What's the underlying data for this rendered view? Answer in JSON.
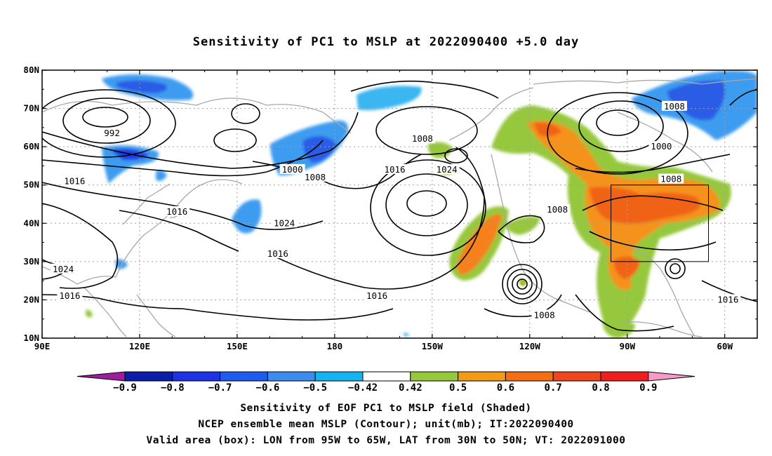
{
  "chart_data": {
    "type": "heatmap",
    "title": "Sensitivity of PC1 to MSLP at 2022090400 +5.0 day",
    "x_ticks": [
      "90E",
      "120E",
      "150E",
      "180",
      "150W",
      "120W",
      "90W",
      "60W"
    ],
    "y_ticks": [
      "10N",
      "20N",
      "30N",
      "40N",
      "50N",
      "60N",
      "70N",
      "80N"
    ],
    "lon_range_deg_east": [
      90,
      310
    ],
    "lat_range": [
      10,
      80
    ],
    "grid": "dotted",
    "colorbar": {
      "labels": [
        "-0.9",
        "-0.8",
        "-0.7",
        "-0.6",
        "-0.5",
        "-0.42",
        "0.42",
        "0.5",
        "0.6",
        "0.7",
        "0.8",
        "0.9"
      ],
      "colors": [
        "#9c1e9c",
        "#0a1ea8",
        "#1e32e6",
        "#1e5cf0",
        "#3c8cf0",
        "#14b4f0",
        "#ffffff",
        "#96c83c",
        "#f59a14",
        "#f56e14",
        "#f0461e",
        "#f01e1e",
        "#f59bc8"
      ]
    },
    "contours": [
      {
        "label": "992",
        "lon": 111.5,
        "lat": 63.5
      },
      {
        "label": "1000",
        "lon": 167,
        "lat": 54
      },
      {
        "label": "1008",
        "lon": 174,
        "lat": 52
      },
      {
        "label": "1016",
        "lon": 100,
        "lat": 51
      },
      {
        "label": "1016",
        "lon": 131.5,
        "lat": 43
      },
      {
        "label": "1024",
        "lon": 164.5,
        "lat": 40
      },
      {
        "label": "1016",
        "lon": 162.5,
        "lat": 32
      },
      {
        "label": "1024",
        "lon": 96.5,
        "lat": 28
      },
      {
        "label": "1016",
        "lon": 98.5,
        "lat": 21
      },
      {
        "label": "1008",
        "lon": 207,
        "lat": 62
      },
      {
        "label": "1016",
        "lon": 198.5,
        "lat": 54
      },
      {
        "label": "1024",
        "lon": 214.5,
        "lat": 54
      },
      {
        "label": "1016",
        "lon": 193,
        "lat": 21
      },
      {
        "label": "1008",
        "lon": 248.5,
        "lat": 43.5
      },
      {
        "label": "1008",
        "lon": 244.5,
        "lat": 16
      },
      {
        "label": "1008",
        "lon": 284.5,
        "lat": 70.5
      },
      {
        "label": "1000",
        "lon": 280.5,
        "lat": 60
      },
      {
        "label": "1008",
        "lon": 283.5,
        "lat": 51.5
      },
      {
        "label": "1016",
        "lon": 301,
        "lat": 20
      }
    ],
    "valid_box": {
      "lon": [
        265,
        295
      ],
      "lat": [
        30,
        50
      ]
    }
  },
  "captions": {
    "line1": "Sensitivity of EOF PC1 to MSLP field (Shaded)",
    "line2": "NCEP ensemble mean MSLP (Contour); unit(mb); IT:2022090400",
    "line3": "Valid area (box): LON from 95W to 65W, LAT from 30N to 50N; VT: 2022091000"
  }
}
